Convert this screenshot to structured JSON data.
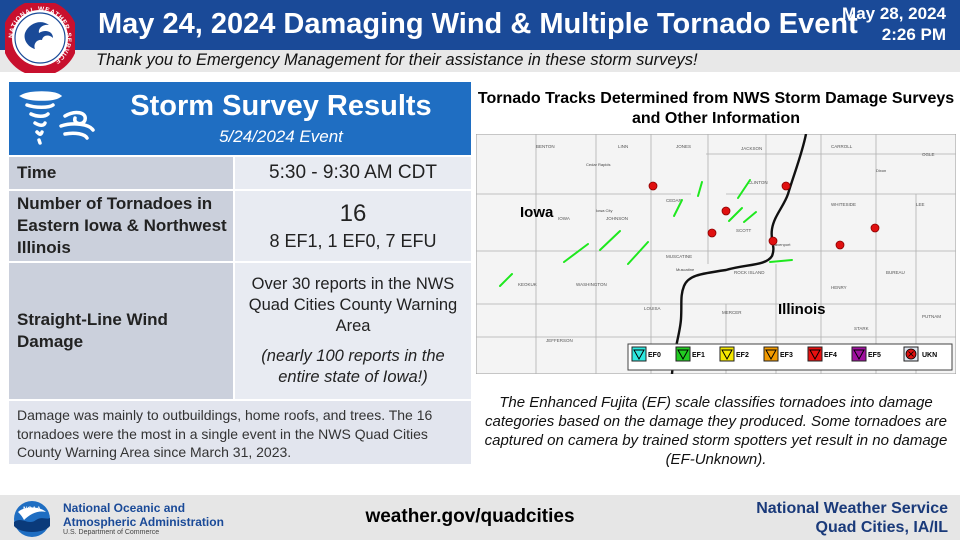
{
  "header": {
    "title": "May 24, 2024 Damaging Wind & Multiple Tornado Event",
    "date": "May 28, 2024",
    "time": "2:26 PM",
    "logo_text": "NATIONAL WEATHER SERVICE"
  },
  "subheader": "Thank you to Emergency Management for their assistance in these storm surveys!",
  "survey": {
    "title": "Storm Survey Results",
    "event": "5/24/2024 Event",
    "rows": [
      {
        "label": "Time",
        "value": "5:30 - 9:30 AM CDT"
      },
      {
        "label": "Number of Tornadoes in Eastern Iowa & Northwest Illinois",
        "value": "16",
        "value_detail": "8 EF1, 1 EF0, 7 EFU"
      },
      {
        "label": "Straight-Line Wind Damage",
        "value": "Over 30 reports in the NWS Quad Cities County Warning Area",
        "value_detail": "(nearly 100 reports in the entire state of Iowa!)"
      }
    ],
    "note": "Damage was mainly to outbuildings, home roofs, and trees. The 16 tornadoes were the most in a single event in the NWS Quad Cities County Warning Area since March 31, 2023."
  },
  "map": {
    "title": "Tornado Tracks Determined from NWS Storm Damage Surveys and Other Information",
    "state_labels": [
      "Iowa",
      "Illinois"
    ],
    "legend": [
      "EF0",
      "EF1",
      "EF2",
      "EF3",
      "EF4",
      "EF5",
      "UKN"
    ],
    "legend_colors": [
      "#2ee8e0",
      "#22cc22",
      "#f5e800",
      "#f29a00",
      "#e81010",
      "#a010a0",
      "#e01010"
    ],
    "county_labels": [
      "BENTON",
      "LINN",
      "JONES",
      "CARROLL",
      "OGLE",
      "JACKSON",
      "CEDAR",
      "CLINTON",
      "WHITESIDE",
      "LEE",
      "IOWA",
      "JOHNSON",
      "SCOTT",
      "MUSCATINE",
      "ROCK ISLAND",
      "HENRY",
      "BUREAU",
      "KEOKUK",
      "WASHINGTON",
      "LOUISA",
      "MERCER",
      "STARK",
      "PUTNAM",
      "JEFFERSON"
    ],
    "city_labels": [
      "Cedar Rapids",
      "Iowa City",
      "Davenport",
      "Muscatine",
      "Dixon"
    ]
  },
  "ef_description": "The Enhanced Fujita (EF) scale classifies tornadoes into damage categories based on the damage they produced. Some tornadoes are captured on camera by trained storm spotters yet result in no damage (EF-Unknown).",
  "footer": {
    "noaa_line1": "National Oceanic and",
    "noaa_line2": "Atmospheric Administration",
    "noaa_dept": "U.S. Department of Commerce",
    "noaa_logo_text": "NOAA",
    "url": "weather.gov/quadcities",
    "nws_line1": "National Weather Service",
    "nws_line2": "Quad Cities, IA/IL"
  }
}
